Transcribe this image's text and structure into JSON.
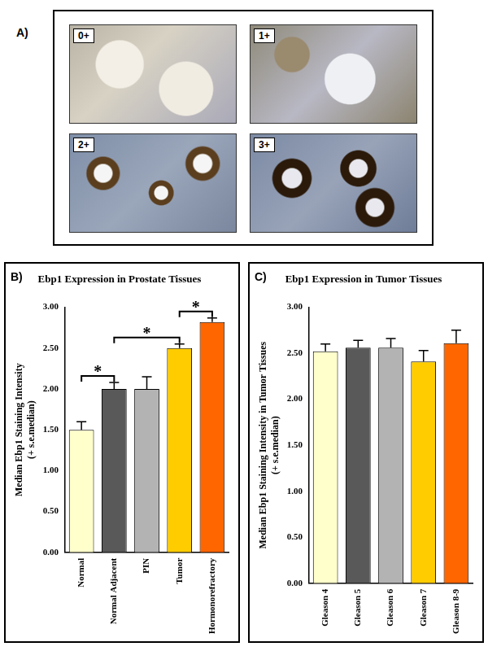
{
  "panel_a": {
    "label": "A)",
    "images": [
      "0+",
      "1+",
      "2+",
      "3+"
    ]
  },
  "chart_data": [
    {
      "type": "bar",
      "annotations": [
        "B)"
      ],
      "title": "Ebp1 Expression in Prostate Tissues",
      "y_label": [
        "Median Ebp1 Staining Intensity",
        "(+ s.e.median)"
      ],
      "categories": [
        "Normal",
        "Normal Adjacent",
        "PIN",
        "Tumor",
        "Hormonorefractory"
      ],
      "values": [
        1.5,
        2.0,
        2.0,
        2.5,
        2.82
      ],
      "errors": [
        0.1,
        0.08,
        0.15,
        0.05,
        0.05
      ],
      "colors": [
        "#ffffcc",
        "#595959",
        "#b3b3b3",
        "#ffcc00",
        "#ff6600"
      ],
      "ylim": [
        0,
        3
      ],
      "yticks": [
        {
          "value": 0,
          "label": "0.00"
        },
        {
          "value": 0.5,
          "label": "0.50"
        },
        {
          "value": 1,
          "label": "1.00"
        },
        {
          "value": 1.5,
          "label": "1.50"
        },
        {
          "value": 2,
          "label": "2.00"
        },
        {
          "value": 2.5,
          "label": "2.50"
        },
        {
          "value": 3,
          "label": "3.00"
        }
      ],
      "grid": false,
      "significance": [
        {
          "from": "Normal",
          "to": "Normal Adjacent",
          "label": "*"
        },
        {
          "from": "Normal Adjacent",
          "to": "Tumor",
          "label": "*"
        },
        {
          "from": "Tumor",
          "to": "Hormonorefractory",
          "label": "*"
        }
      ]
    },
    {
      "type": "bar",
      "annotations": [
        "C)"
      ],
      "title": "Ebp1 Expression in Tumor Tissues",
      "y_label": [
        "Median Ebp1 Staining Intensity in Tumor Tissues",
        "(+ s.e.median)"
      ],
      "categories": [
        "Gleason 4",
        "Gleason 5",
        "Gleason 6",
        "Gleason 7",
        "Gleason 8-9"
      ],
      "values": [
        2.52,
        2.56,
        2.56,
        2.41,
        2.61
      ],
      "errors": [
        0.08,
        0.08,
        0.1,
        0.12,
        0.14
      ],
      "colors": [
        "#ffffcc",
        "#595959",
        "#b3b3b3",
        "#ffcc00",
        "#ff6600"
      ],
      "ylim": [
        0,
        3
      ],
      "yticks": [
        {
          "value": 0,
          "label": "0.00"
        },
        {
          "value": 0.5,
          "label": "0.50"
        },
        {
          "value": 1,
          "label": "1.00"
        },
        {
          "value": 1.5,
          "label": "1.50"
        },
        {
          "value": 2,
          "label": "2.00"
        },
        {
          "value": 2.5,
          "label": "2.50"
        },
        {
          "value": 3,
          "label": "3.00"
        }
      ],
      "grid": false
    }
  ]
}
